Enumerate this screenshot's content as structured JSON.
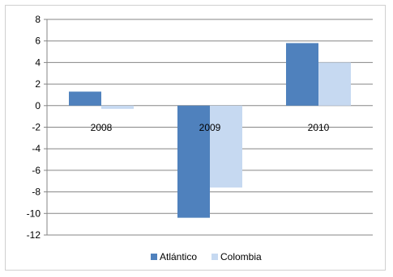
{
  "chart_data": {
    "type": "bar",
    "categories": [
      "2008",
      "2009",
      "2010"
    ],
    "series": [
      {
        "name": "Atlántico",
        "values": [
          1.3,
          -10.4,
          5.8
        ],
        "color": "#4f81bd"
      },
      {
        "name": "Colombia",
        "values": [
          -0.3,
          -7.6,
          4.0
        ],
        "color": "#c6d9f1"
      }
    ],
    "title": "",
    "xlabel": "",
    "ylabel": "",
    "ylim": [
      -12,
      8
    ],
    "yticks": [
      "8",
      "6",
      "4",
      "2",
      "0",
      "-2",
      "-4",
      "-6",
      "-8",
      "-10",
      "-12"
    ],
    "grid": true,
    "legend_position": "bottom"
  }
}
